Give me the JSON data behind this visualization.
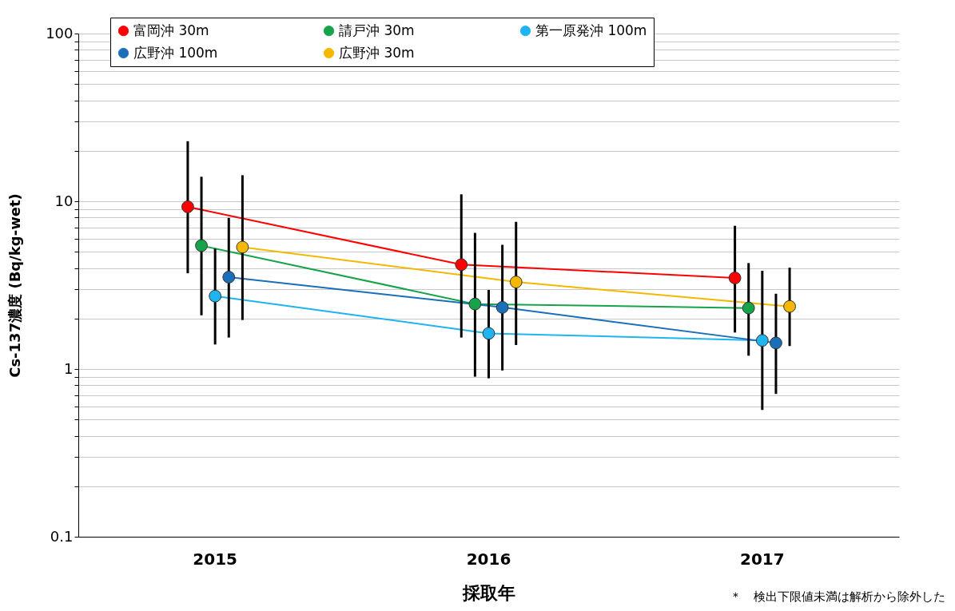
{
  "chart_data": {
    "type": "line",
    "xlabel": "採取年",
    "ylabel": "Cs-137濃度 (Bq/kg-wet)",
    "categories": [
      "2015",
      "2016",
      "2017"
    ],
    "series": [
      {
        "name": "富岡沖 30m",
        "color": "#ff0000",
        "values": [
          9.27,
          4.19,
          3.49
        ],
        "errors": [
          [
            3.72,
            22.8
          ],
          [
            1.54,
            11.0
          ],
          [
            1.65,
            7.14
          ]
        ]
      },
      {
        "name": "請戸沖 30m",
        "color": "#16a34a",
        "values": [
          5.44,
          2.44,
          2.31
        ],
        "errors": [
          [
            2.09,
            14.0
          ],
          [
            0.9,
            6.48
          ],
          [
            1.2,
            4.28
          ]
        ]
      },
      {
        "name": "第一原発沖 100m",
        "color": "#1fb4f0",
        "values": [
          2.72,
          1.63,
          1.48
        ],
        "errors": [
          [
            1.4,
            5.21
          ],
          [
            0.88,
            2.96
          ],
          [
            0.57,
            3.85
          ]
        ]
      },
      {
        "name": "広野沖 100m",
        "color": "#1a6fb8",
        "values": [
          3.53,
          2.33,
          1.43
        ],
        "errors": [
          [
            1.54,
            7.96
          ],
          [
            0.98,
            5.5
          ],
          [
            0.71,
            2.81
          ]
        ]
      },
      {
        "name": "広野沖 30m",
        "color": "#f5b800",
        "values": [
          5.33,
          3.3,
          2.36
        ],
        "errors": [
          [
            1.96,
            14.3
          ],
          [
            1.39,
            7.54
          ],
          [
            1.37,
            4.02
          ]
        ]
      }
    ],
    "log": true,
    "ylim": [
      0.1,
      100
    ],
    "yticks": [
      0.1,
      {
        "value": 0.2,
        "label": null
      },
      {
        "value": 0.3,
        "label": null
      },
      {
        "value": 0.4,
        "label": null
      },
      {
        "value": 0.5,
        "label": null
      },
      {
        "value": 0.6,
        "label": null
      },
      {
        "value": 0.7,
        "label": null
      },
      {
        "value": 0.8,
        "label": null
      },
      {
        "value": 0.9,
        "label": null
      },
      1,
      {
        "value": 2,
        "label": null
      },
      {
        "value": 3,
        "label": null
      },
      {
        "value": 4,
        "label": null
      },
      {
        "value": 5,
        "label": null
      },
      {
        "value": 6,
        "label": null
      },
      {
        "value": 7,
        "label": null
      },
      {
        "value": 8,
        "label": null
      },
      {
        "value": 9,
        "label": null
      },
      10,
      {
        "value": 20,
        "label": null
      },
      {
        "value": 30,
        "label": null
      },
      {
        "value": 40,
        "label": null
      },
      {
        "value": 50,
        "label": null
      },
      {
        "value": 60,
        "label": null
      },
      {
        "value": 70,
        "label": null
      },
      {
        "value": 80,
        "label": null
      },
      {
        "value": 90,
        "label": null
      },
      100
    ],
    "grid": "y",
    "legend": "top",
    "marker": "circle",
    "line_style": "solid",
    "annotations": [
      "＊　検出下限値未満は解析から除外した"
    ]
  }
}
